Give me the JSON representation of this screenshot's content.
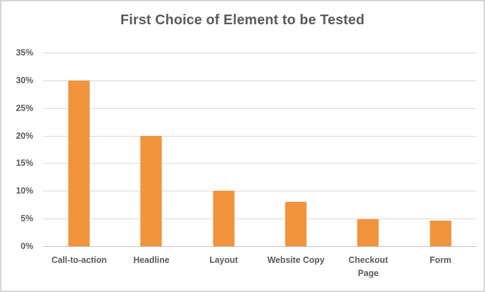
{
  "chart_data": {
    "type": "bar",
    "title": "First Choice of Element to be Tested",
    "categories": [
      "Call-to-action",
      "Headline",
      "Layout",
      "Website Copy",
      "Checkout\nPage",
      "Form"
    ],
    "values": [
      30,
      20,
      10,
      8,
      4.9,
      4.6
    ],
    "y_ticks": [
      "35%",
      "30%",
      "25%",
      "20%",
      "15%",
      "10%",
      "5%",
      "0%"
    ],
    "ylim": [
      0,
      35
    ],
    "y_tick_step": 5,
    "xlabel": "",
    "ylabel": "",
    "grid": "horizontal",
    "legend": "none",
    "bar_color": "#f0943d",
    "gridline_color": "#d9d9d9",
    "axis_line_color": "#bfbfbf",
    "text_color": "#595959",
    "frame_border_color": "#d5d5d5",
    "background_color": "#ffffff"
  }
}
